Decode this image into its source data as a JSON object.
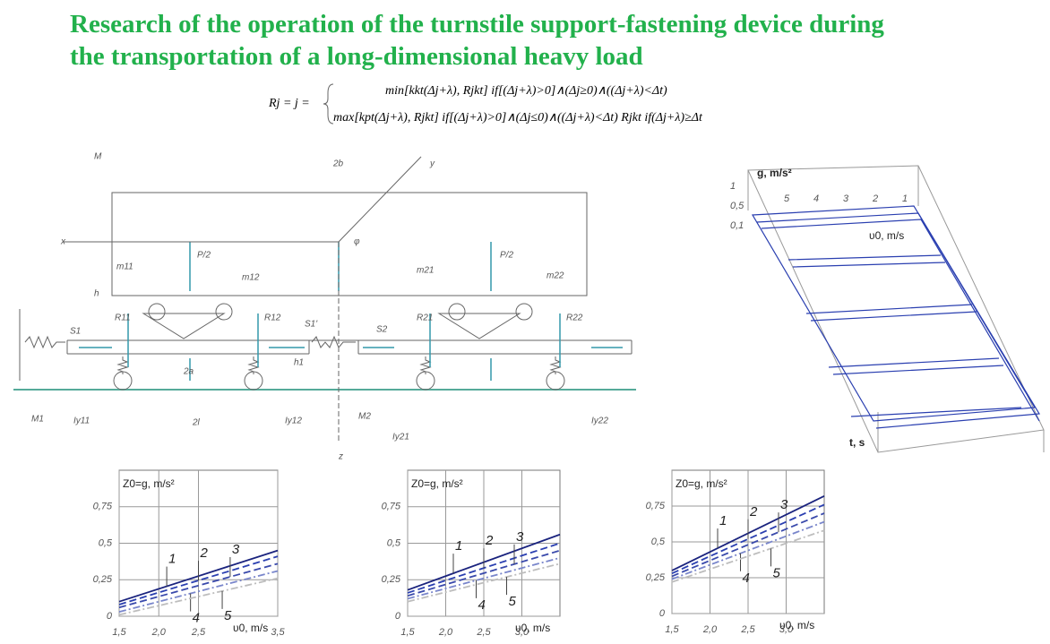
{
  "title": [
    "Research of the operation of the turnstile support-fastening device during",
    "the transportation of a long-dimensional heavy load"
  ],
  "formula": {
    "lhs": "Rj = j =",
    "cases": [
      "min[kkt(Δj+λ), Rjkt] if[(Δj+λ)>0]∧(Δj≥0)∧((Δj+λ)<Δt)",
      "max[kpt(Δj+λ), Rjkt] if[(Δj+λ)>0]∧(Δj≤0)∧((Δj+λ)<Δt) Rjkt if(Δj+λ)≥Δt"
    ]
  },
  "diagram": {
    "labels": [
      "M",
      "2b",
      "y",
      "x",
      "φ",
      "P/2",
      "P/2",
      "h",
      "m11",
      "m12",
      "m21",
      "m22",
      "S1",
      "S1'",
      "S2",
      "R11",
      "R12",
      "R21",
      "R22",
      "2a",
      "h1",
      "2l",
      "M1",
      "M2",
      "z",
      "Iy11",
      "Iy12",
      "Iy21",
      "Iy22"
    ]
  },
  "chart3d": {
    "y_label": "g, m/s²",
    "x_label": "υ0, m/s",
    "t_label": "t, s",
    "ticks": [
      "1",
      "0,5",
      "0,1"
    ],
    "curve_labels": [
      "5",
      "4",
      "3",
      "2",
      "1"
    ]
  },
  "chart_data": [
    {
      "type": "line",
      "y_label": "Z0=g, m/s²",
      "x_label": "υ0, m/s",
      "x": [
        1.5,
        3.5
      ],
      "xlim": [
        1.5,
        3.5
      ],
      "ylim": [
        0,
        1
      ],
      "xticks": [
        {
          "value": 1.5,
          "label": "1,5"
        },
        {
          "value": 2.0,
          "label": "2,0"
        },
        {
          "value": 2.5,
          "label": "2,5"
        },
        {
          "value": 3.5,
          "label": "3,5"
        }
      ],
      "yticks": [
        0,
        {
          "value": 0.25,
          "label": "0,25"
        },
        {
          "value": 0.5,
          "label": "0,5"
        },
        {
          "value": 0.75,
          "label": "0,75"
        }
      ],
      "grid": true,
      "series": [
        {
          "name": "1",
          "color": "#1a237e",
          "style": "solid",
          "values": [
            0.1,
            0.45
          ]
        },
        {
          "name": "2",
          "color": "#2a3fb0",
          "style": "dashed",
          "values": [
            0.08,
            0.41
          ]
        },
        {
          "name": "3",
          "color": "#3949ab",
          "style": "dashed",
          "values": [
            0.06,
            0.36
          ]
        },
        {
          "name": "4",
          "color": "#7986cb",
          "style": "dashdot",
          "values": [
            0.03,
            0.31
          ]
        },
        {
          "name": "5",
          "color": "#bdbdbd",
          "style": "dashdot",
          "values": [
            0.01,
            0.26
          ]
        }
      ]
    },
    {
      "type": "line",
      "y_label": "Z0=g, m/s²",
      "x_label": "υ0, m/s",
      "x": [
        1.5,
        3.5
      ],
      "xlim": [
        1.5,
        3.5
      ],
      "ylim": [
        0,
        1
      ],
      "xticks": [
        {
          "value": 1.5,
          "label": "1,5"
        },
        {
          "value": 2.0,
          "label": "2,0"
        },
        {
          "value": 2.5,
          "label": "2,5"
        },
        {
          "value": 3.0,
          "label": "3,0"
        }
      ],
      "yticks": [
        0,
        {
          "value": 0.25,
          "label": "0,25"
        },
        {
          "value": 0.5,
          "label": "0,5"
        },
        {
          "value": 0.75,
          "label": "0,75"
        }
      ],
      "grid": true,
      "series": [
        {
          "name": "1",
          "color": "#1a237e",
          "style": "solid",
          "values": [
            0.18,
            0.56
          ]
        },
        {
          "name": "2",
          "color": "#2a3fb0",
          "style": "dashed",
          "values": [
            0.16,
            0.5
          ]
        },
        {
          "name": "3",
          "color": "#3949ab",
          "style": "dashed",
          "values": [
            0.14,
            0.45
          ]
        },
        {
          "name": "4",
          "color": "#7986cb",
          "style": "dashdot",
          "values": [
            0.12,
            0.4
          ]
        },
        {
          "name": "5",
          "color": "#bdbdbd",
          "style": "dashdot",
          "values": [
            0.1,
            0.36
          ]
        }
      ]
    },
    {
      "type": "line",
      "y_label": "Z0=g, m/s²",
      "x_label": "υ0, m/s",
      "x": [
        1.5,
        3.5
      ],
      "xlim": [
        1.5,
        3.5
      ],
      "ylim": [
        0,
        1
      ],
      "xticks": [
        {
          "value": 1.5,
          "label": "1,5"
        },
        {
          "value": 2.0,
          "label": "2,0"
        },
        {
          "value": 2.5,
          "label": "2,5"
        },
        {
          "value": 3.0,
          "label": "3,0"
        }
      ],
      "yticks": [
        0,
        {
          "value": 0.25,
          "label": "0,25"
        },
        {
          "value": 0.5,
          "label": "0,5"
        },
        {
          "value": 0.75,
          "label": "0,75"
        }
      ],
      "grid": true,
      "series": [
        {
          "name": "1",
          "color": "#1a237e",
          "style": "solid",
          "values": [
            0.3,
            0.82
          ]
        },
        {
          "name": "2",
          "color": "#2a3fb0",
          "style": "dashed",
          "values": [
            0.28,
            0.76
          ]
        },
        {
          "name": "3",
          "color": "#3949ab",
          "style": "dashed",
          "values": [
            0.26,
            0.7
          ]
        },
        {
          "name": "4",
          "color": "#7986cb",
          "style": "dashdot",
          "values": [
            0.24,
            0.64
          ]
        },
        {
          "name": "5",
          "color": "#bdbdbd",
          "style": "dashdot",
          "values": [
            0.22,
            0.58
          ]
        }
      ]
    }
  ]
}
